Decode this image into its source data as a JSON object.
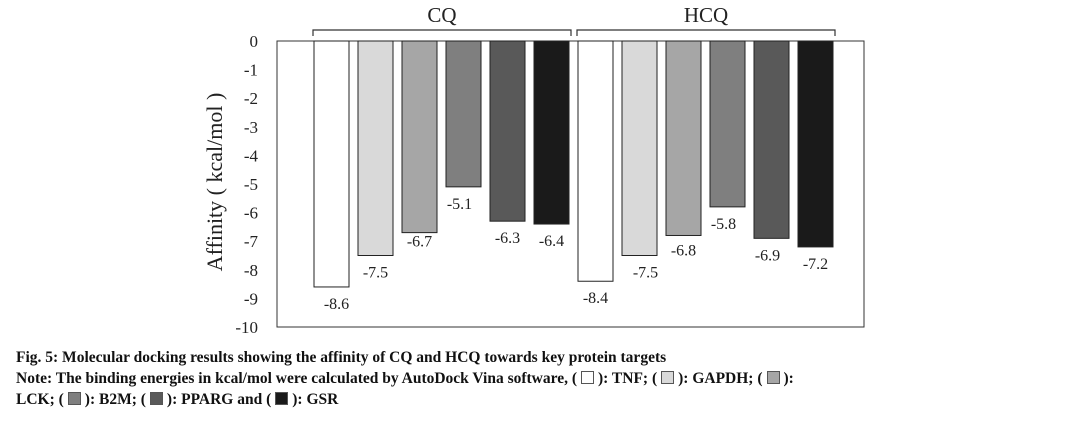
{
  "chart_data": {
    "type": "bar",
    "groups": [
      "CQ",
      "HCQ"
    ],
    "ylabel": "Affinity ( kcal/mol )",
    "ylim": [
      -10,
      0
    ],
    "yticks": [
      0,
      -1,
      -2,
      -3,
      -4,
      -5,
      -6,
      -7,
      -8,
      -9,
      -10
    ],
    "series": [
      {
        "name": "TNF",
        "color": "#ffffff",
        "values": [
          -8.6,
          -8.4
        ],
        "labels": [
          "-8.6",
          "-8.4"
        ]
      },
      {
        "name": "GAPDH",
        "color": "#d9d9d9",
        "values": [
          -7.5,
          -7.5
        ],
        "labels": [
          "-7.5",
          "-7.5"
        ]
      },
      {
        "name": "LCK",
        "color": "#a6a6a6",
        "values": [
          -6.7,
          -6.8
        ],
        "labels": [
          "-6.7",
          "-6.8"
        ]
      },
      {
        "name": "B2M",
        "color": "#7f7f7f",
        "values": [
          -5.1,
          -5.8
        ],
        "labels": [
          "-5.1",
          "-5.8"
        ]
      },
      {
        "name": "PPARG",
        "color": "#595959",
        "values": [
          -6.3,
          -6.9
        ],
        "labels": [
          "-6.3",
          "-6.9"
        ]
      },
      {
        "name": "GSR",
        "color": "#1a1a1a",
        "values": [
          -6.4,
          -7.2
        ],
        "labels": [
          "-6.4",
          "-7.2"
        ]
      }
    ],
    "grid": false,
    "legend": "caption"
  },
  "caption": {
    "title": "Fig. 5: Molecular docking results showing the affinity of CQ and HCQ towards key protein targets",
    "note_prefix": "Note: The binding energies in kcal/mol were calculated by AutoDock Vina software, (",
    "tnf": "): TNF; (",
    "gapdh": "): GAPDH; (",
    "lck_end": "):",
    "line3_start": "LCK; (",
    "b2m": "): B2M; (",
    "pparg": "): PPARG and (",
    "gsr": "): GSR"
  }
}
